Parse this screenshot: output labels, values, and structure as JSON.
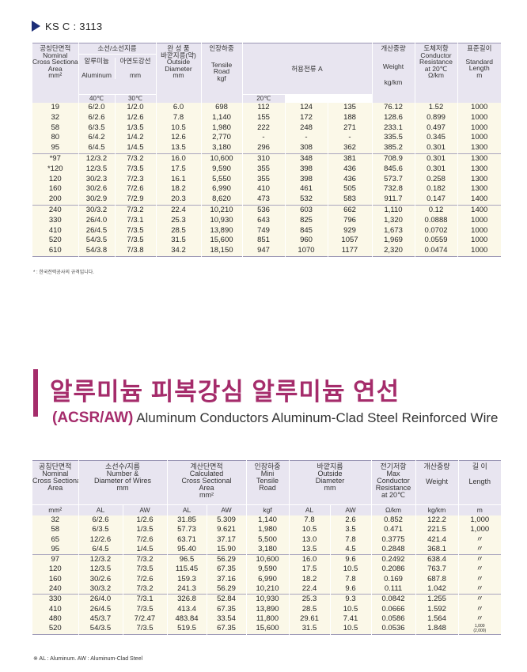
{
  "top": {
    "standard_label": "KS C : 3113"
  },
  "table1": {
    "headers": {
      "area": [
        "공칭단면적",
        "Nominal",
        "Cross Sectional",
        "Area",
        "mm²"
      ],
      "strand": "소선/소선지름",
      "strand_al": [
        "알루미늄",
        "Aluminum"
      ],
      "strand_st": "아연도강선",
      "strand_st_unit": "mm",
      "outside": [
        "완 성 품",
        "바깥지름(약)",
        "Outside",
        "Diameter",
        "mm"
      ],
      "tensile": [
        "인장하중",
        "Tensile",
        "Road",
        "kgf"
      ],
      "ampacity": "허용전류 A",
      "amp_temps": [
        "40℃",
        "30℃",
        "20℃"
      ],
      "weight": [
        "개산중량",
        "Weight",
        "kg/km"
      ],
      "resistance": [
        "도체저항",
        "Conductor",
        "Resistance",
        "at 20℃",
        "Ω/km"
      ],
      "length": [
        "표준길이",
        "Standard",
        "Length",
        "m"
      ]
    },
    "groups": [
      [
        [
          "19",
          "6/2.0",
          "1/2.0",
          "6.0",
          "698",
          "112",
          "124",
          "135",
          "76.12",
          "1.52",
          "1000"
        ],
        [
          "32",
          "6/2.6",
          "1/2.6",
          "7.8",
          "1,140",
          "155",
          "172",
          "188",
          "128.6",
          "0.899",
          "1000"
        ],
        [
          "58",
          "6/3.5",
          "1/3.5",
          "10.5",
          "1,980",
          "222",
          "248",
          "271",
          "233.1",
          "0.497",
          "1000"
        ],
        [
          "80",
          "6/4.2",
          "1/4.2",
          "12.6",
          "2,770",
          "-",
          "-",
          "-",
          "335.5",
          "0.345",
          "1000"
        ],
        [
          "95",
          "6/4.5",
          "1/4.5",
          "13.5",
          "3,180",
          "296",
          "308",
          "362",
          "385.2",
          "0.301",
          "1300"
        ]
      ],
      [
        [
          "*97",
          "12/3.2",
          "7/3.2",
          "16.0",
          "10,600",
          "310",
          "348",
          "381",
          "708.9",
          "0.301",
          "1300"
        ],
        [
          "*120",
          "12/3.5",
          "7/3.5",
          "17.5",
          "9,590",
          "355",
          "398",
          "436",
          "845.6",
          "0.301",
          "1300"
        ],
        [
          "120",
          "30/2.3",
          "7/2.3",
          "16.1",
          "5,550",
          "355",
          "398",
          "436",
          "573.7",
          "0.258",
          "1300"
        ],
        [
          "160",
          "30/2.6",
          "7/2.6",
          "18.2",
          "6,990",
          "410",
          "461",
          "505",
          "732.8",
          "0.182",
          "1300"
        ],
        [
          "200",
          "30/2.9",
          "7/2.9",
          "20.3",
          "8,620",
          "473",
          "532",
          "583",
          "911.7",
          "0.147",
          "1400"
        ]
      ],
      [
        [
          "240",
          "30/3.2",
          "7/3.2",
          "22.4",
          "10,210",
          "536",
          "603",
          "662",
          "1,110",
          "0.12",
          "1400"
        ],
        [
          "330",
          "26/4.0",
          "7/3.1",
          "25.3",
          "10,930",
          "643",
          "825",
          "796",
          "1,320",
          "0.0888",
          "1000"
        ],
        [
          "410",
          "26/4.5",
          "7/3.5",
          "28.5",
          "13,890",
          "749",
          "845",
          "929",
          "1,673",
          "0.0702",
          "1000"
        ],
        [
          "520",
          "54/3.5",
          "7/3.5",
          "31.5",
          "15,600",
          "851",
          "960",
          "1057",
          "1,969",
          "0.0559",
          "1000"
        ],
        [
          "610",
          "54/3.8",
          "7/3.8",
          "34.2",
          "18,150",
          "947",
          "1070",
          "1177",
          "2,320",
          "0.0474",
          "1000"
        ]
      ]
    ],
    "footnote": "* : 한국전력공사의 규격입니다."
  },
  "section2": {
    "title_kr": "알루미늄 피복강심 알루미늄 연선",
    "title_abbr": "(ACSR/AW)",
    "title_en": "Aluminum Conductors Aluminum-Clad Steel Reinforced Wire"
  },
  "table2": {
    "headers": {
      "area": [
        "공칭단면적",
        "Nominal",
        "Cross Sectional",
        "Area"
      ],
      "area_unit": "mm²",
      "strand": [
        "소선수/지름",
        "Number &",
        "Diameter of Wires",
        "mm"
      ],
      "strand_sub": [
        "AL",
        "AW"
      ],
      "calc": [
        "계산단면적",
        "Calculated",
        "Cross Sectional",
        "Area",
        "mm²"
      ],
      "calc_sub": [
        "AL",
        "AW"
      ],
      "tensile": [
        "인장하중",
        "Mini",
        "Tensile",
        "Road"
      ],
      "tensile_unit": "kgf",
      "outside": [
        "바깥지름",
        "Outside",
        "Diameter",
        "mm"
      ],
      "outside_sub": [
        "AL",
        "AW"
      ],
      "resistance": [
        "전기저항",
        "Max",
        "Conductor",
        "Resistance",
        "at 20℃"
      ],
      "resistance_unit": "Ω/km",
      "weight": [
        "개산중량",
        "Weight"
      ],
      "weight_unit": "kg/km",
      "length": [
        "길 이",
        "Length"
      ],
      "length_unit": "m"
    },
    "groups": [
      [
        [
          "32",
          "6/2.6",
          "1/2.6",
          "31.85",
          "5.309",
          "1,140",
          "7.8",
          "2.6",
          "0.852",
          "122.2",
          "1,000"
        ],
        [
          "58",
          "6/3.5",
          "1/3.5",
          "57.73",
          "9.621",
          "1,980",
          "10.5",
          "3.5",
          "0.471",
          "221.5",
          "1,000"
        ],
        [
          "65",
          "12/2.6",
          "7/2.6",
          "63.71",
          "37.17",
          "5,500",
          "13.0",
          "7.8",
          "0.3775",
          "421.4",
          "〃"
        ],
        [
          "95",
          "6/4.5",
          "1/4.5",
          "95.40",
          "15.90",
          "3,180",
          "13.5",
          "4.5",
          "0.2848",
          "368.1",
          "〃"
        ]
      ],
      [
        [
          "97",
          "12/3.2",
          "7/3.2",
          "96.5",
          "56.29",
          "10,600",
          "16.0",
          "9.6",
          "0.2492",
          "638.4",
          "〃"
        ],
        [
          "120",
          "12/3.5",
          "7/3.5",
          "115.45",
          "67.35",
          "9,590",
          "17.5",
          "10.5",
          "0.2086",
          "763.7",
          "〃"
        ],
        [
          "160",
          "30/2.6",
          "7/2.6",
          "159.3",
          "37.16",
          "6,990",
          "18.2",
          "7.8",
          "0.169",
          "687.8",
          "〃"
        ],
        [
          "240",
          "30/3.2",
          "7/3.2",
          "241.3",
          "56.29",
          "10,210",
          "22.4",
          "9.6",
          "0.111",
          "1.042",
          "〃"
        ]
      ],
      [
        [
          "330",
          "26/4.0",
          "7/3.1",
          "326.8",
          "52.84",
          "10,930",
          "25.3",
          "9.3",
          "0.0842",
          "1.255",
          "〃"
        ],
        [
          "410",
          "26/4.5",
          "7/3.5",
          "413.4",
          "67.35",
          "13,890",
          "28.5",
          "10.5",
          "0.0666",
          "1.592",
          "〃"
        ],
        [
          "480",
          "45/3.7",
          "7/2.47",
          "483.84",
          "33.54",
          "11,800",
          "29.61",
          "7.41",
          "0.0586",
          "1.564",
          "〃"
        ],
        [
          "520",
          "54/3.5",
          "7/3.5",
          "519.5",
          "67.35",
          "15,600",
          "31.5",
          "10.5",
          "0.0536",
          "1.848",
          "1,000\n(2,000)"
        ]
      ]
    ],
    "footnote": "※ AL : Aluminum.  AW : Aluminum-Clad Steel"
  },
  "colors": {
    "accent": "#a52c6b",
    "marker": "#1c2e78",
    "header_bg": "#e8e5f0",
    "row_bg": "#fbf8e8"
  }
}
